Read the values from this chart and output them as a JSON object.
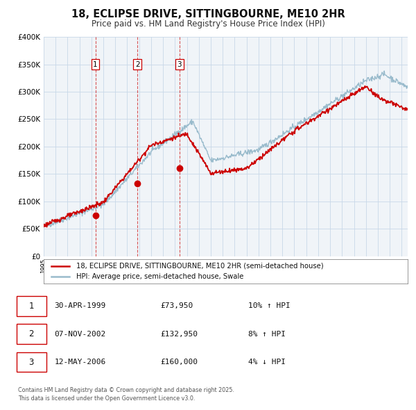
{
  "title": "18, ECLIPSE DRIVE, SITTINGBOURNE, ME10 2HR",
  "subtitle": "Price paid vs. HM Land Registry's House Price Index (HPI)",
  "title_fontsize": 10.5,
  "subtitle_fontsize": 8.5,
  "property_label": "18, ECLIPSE DRIVE, SITTINGBOURNE, ME10 2HR (semi-detached house)",
  "hpi_label": "HPI: Average price, semi-detached house, Swale",
  "property_color": "#cc0000",
  "hpi_color": "#99bbcc",
  "sale_marker_color": "#cc0000",
  "vline_color": "#cc0000",
  "ylim": [
    0,
    400000
  ],
  "yticks": [
    0,
    50000,
    100000,
    150000,
    200000,
    250000,
    300000,
    350000,
    400000
  ],
  "sales": [
    {
      "label": "1",
      "date_num": 1999.33,
      "price": 73950,
      "date_str": "30-APR-1999",
      "pct": "10%",
      "dir": "↑"
    },
    {
      "label": "2",
      "date_num": 2002.85,
      "price": 132950,
      "date_str": "07-NOV-2002",
      "pct": "8%",
      "dir": "↑"
    },
    {
      "label": "3",
      "date_num": 2006.37,
      "price": 160000,
      "date_str": "12-MAY-2006",
      "pct": "4%",
      "dir": "↓"
    }
  ],
  "footnote1": "Contains HM Land Registry data © Crown copyright and database right 2025.",
  "footnote2": "This data is licensed under the Open Government Licence v3.0.",
  "background_color": "#f0f4f8",
  "grid_color": "#c8d8e8",
  "xmin": 1995.0,
  "xmax": 2025.5,
  "row_data": [
    [
      "1",
      "30-APR-1999",
      "£73,950",
      "10% ↑ HPI"
    ],
    [
      "2",
      "07-NOV-2002",
      "£132,950",
      "8% ↑ HPI"
    ],
    [
      "3",
      "12-MAY-2006",
      "£160,000",
      "4% ↓ HPI"
    ]
  ]
}
